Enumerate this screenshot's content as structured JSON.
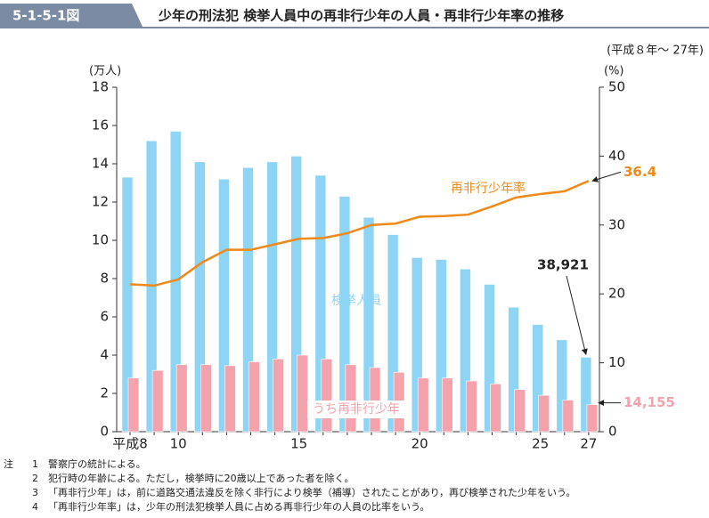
{
  "header": {
    "figure_no": "5-1-5-1図",
    "title": "少年の刑法犯 検挙人員中の再非行少年の人員・再非行少年率の推移"
  },
  "chart_data": {
    "type": "bar",
    "subtitle": "(平成８年～ 27年)",
    "y_label": "(万人)",
    "y2_label": "(%)",
    "categories": [
      "平成8",
      null,
      "10",
      null,
      null,
      null,
      null,
      "15",
      null,
      null,
      null,
      null,
      "20",
      null,
      null,
      null,
      null,
      "25",
      null,
      "27"
    ],
    "series": [
      {
        "name": "検挙人員",
        "type": "bar",
        "color": "#8ed4f5",
        "values": [
          13.3,
          15.2,
          15.7,
          14.1,
          13.2,
          13.8,
          14.1,
          14.4,
          13.4,
          12.3,
          11.2,
          10.3,
          9.1,
          9.0,
          8.5,
          7.7,
          6.5,
          5.6,
          4.8,
          3.8921
        ],
        "value_labels": [
          null,
          null,
          null,
          null,
          null,
          null,
          null,
          null,
          null,
          null,
          null,
          null,
          null,
          null,
          null,
          null,
          null,
          null,
          null,
          "38,921"
        ]
      },
      {
        "name": "うち再非行少年",
        "type": "bar",
        "color": "#f4a3ad",
        "values": [
          2.8,
          3.2,
          3.5,
          3.5,
          3.45,
          3.65,
          3.8,
          4.0,
          3.8,
          3.5,
          3.35,
          3.1,
          2.8,
          2.8,
          2.65,
          2.5,
          2.2,
          1.9,
          1.65,
          1.4155
        ],
        "value_labels": [
          null,
          null,
          null,
          null,
          null,
          null,
          null,
          null,
          null,
          null,
          null,
          null,
          null,
          null,
          null,
          null,
          null,
          null,
          null,
          "14,155"
        ]
      },
      {
        "name": "再非行少年率",
        "type": "line",
        "axis": "y2",
        "color": "#ef8a1a",
        "values": [
          21.4,
          21.2,
          22.1,
          24.6,
          26.4,
          26.4,
          27.2,
          28.0,
          28.1,
          28.8,
          30.0,
          30.2,
          31.2,
          31.3,
          31.5,
          32.7,
          34.0,
          34.5,
          34.9,
          36.4
        ]
      }
    ],
    "ylim": [
      0,
      18
    ],
    "yticks": [
      0,
      2,
      4,
      6,
      8,
      10,
      12,
      14,
      16,
      18
    ],
    "y2lim": [
      0,
      50
    ],
    "y2ticks": [
      0,
      10,
      20,
      30,
      40,
      50
    ]
  },
  "notes": {
    "label": "注",
    "items": [
      {
        "num": "1",
        "text": "警察庁の統計による。"
      },
      {
        "num": "2",
        "text": "犯行時の年齢による。ただし，検挙時に20歳以上であった者を除く。"
      },
      {
        "num": "3",
        "text": "「再非行少年」は，前に道路交通法違反を除く非行により検挙（補導）されたことがあり，再び検挙された少年をいう。"
      },
      {
        "num": "4",
        "text": "「再非行少年率」は，少年の刑法犯検挙人員に占める再非行少年の人員の比率をいう。"
      }
    ]
  }
}
